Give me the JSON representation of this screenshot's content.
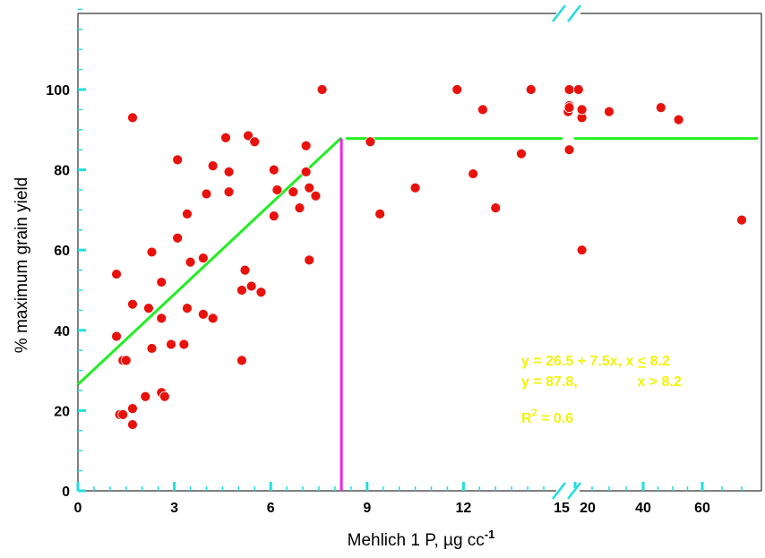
{
  "chart_data": {
    "type": "scatter",
    "xlabel": "Mehlich 1 P, µg cc",
    "xlabel_sup": "-1",
    "ylabel": "% maximum grain yield",
    "ylim": [
      0,
      120
    ],
    "y_ticks": [
      "0",
      "20",
      "40",
      "60",
      "80",
      "100"
    ],
    "x_ticks_left": [
      "0",
      "3",
      "6",
      "9",
      "12",
      "15"
    ],
    "x_ticks_right": [
      "20",
      "40",
      "60"
    ],
    "x_segments": [
      {
        "from": 0,
        "to": 15,
        "scale": "linear"
      },
      {
        "from": 15,
        "to": 70,
        "scale": "linear",
        "break_before": true
      }
    ],
    "grid": false,
    "series": [
      {
        "marker": "circle",
        "color": "#e8120c",
        "points": [
          [
            1.2,
            54
          ],
          [
            1.2,
            38.5
          ],
          [
            1.3,
            19
          ],
          [
            1.4,
            32.5
          ],
          [
            1.4,
            19
          ],
          [
            1.5,
            32.5
          ],
          [
            1.7,
            93
          ],
          [
            1.7,
            46.5
          ],
          [
            1.7,
            20.5
          ],
          [
            1.7,
            16.5
          ],
          [
            2.1,
            23.5
          ],
          [
            2.2,
            45.5
          ],
          [
            2.3,
            35.5
          ],
          [
            2.3,
            59.5
          ],
          [
            2.6,
            52
          ],
          [
            2.6,
            43
          ],
          [
            2.6,
            24.5
          ],
          [
            2.7,
            23.5
          ],
          [
            2.9,
            36.5
          ],
          [
            3.1,
            63
          ],
          [
            3.1,
            82.5
          ],
          [
            3.3,
            36.5
          ],
          [
            3.4,
            45.5
          ],
          [
            3.4,
            69
          ],
          [
            3.5,
            57
          ],
          [
            3.9,
            58
          ],
          [
            3.9,
            44
          ],
          [
            4.0,
            74
          ],
          [
            4.2,
            81
          ],
          [
            4.2,
            43
          ],
          [
            4.6,
            88
          ],
          [
            4.7,
            74.5
          ],
          [
            4.7,
            79.5
          ],
          [
            5.1,
            32.5
          ],
          [
            5.1,
            50
          ],
          [
            5.2,
            55
          ],
          [
            5.3,
            88.5
          ],
          [
            5.4,
            51
          ],
          [
            5.5,
            87
          ],
          [
            5.7,
            49.5
          ],
          [
            6.1,
            80
          ],
          [
            6.1,
            68.5
          ],
          [
            6.2,
            75
          ],
          [
            6.7,
            74.5
          ],
          [
            6.9,
            70.5
          ],
          [
            7.1,
            86
          ],
          [
            7.1,
            79.5
          ],
          [
            7.2,
            75.5
          ],
          [
            7.2,
            57.5
          ],
          [
            7.4,
            73.5
          ],
          [
            7.6,
            100
          ],
          [
            9.1,
            87
          ],
          [
            9.4,
            69
          ],
          [
            10.5,
            75.5
          ],
          [
            11.8,
            100
          ],
          [
            12.3,
            79
          ],
          [
            12.6,
            95
          ],
          [
            13.0,
            70.5
          ],
          [
            13.8,
            84
          ],
          [
            14.1,
            100
          ],
          [
            17,
            94.5
          ],
          [
            17.5,
            96
          ],
          [
            17.5,
            95.5
          ],
          [
            17.5,
            100
          ],
          [
            17.5,
            85
          ],
          [
            21,
            100
          ],
          [
            22,
            93
          ],
          [
            22,
            95
          ],
          [
            22,
            60
          ],
          [
            30,
            94.5
          ],
          [
            46,
            95.5
          ],
          [
            52,
            92.5
          ],
          [
            70,
            67.5
          ]
        ]
      }
    ],
    "fit": {
      "color": "#22ee22",
      "linear_part": {
        "x0": 0,
        "y0": 26.5,
        "slope": 7.5,
        "x_end": 8.2
      },
      "plateau": 87.8,
      "plateau_extends_to": 70
    },
    "critical_line": {
      "x": 8.2,
      "color": "#ee22ee"
    },
    "annotations": {
      "color": "#f2f20a",
      "eq1_a": "y = 26.5  + 7.5x,  x ",
      "eq1_le": "<",
      "eq1_b": " 8.2",
      "eq2": "y = 87.8,               x > 8.2",
      "r2_prefix": "R",
      "r2_sup": "2",
      "r2_suffix": " = 0.6"
    },
    "axis_tick_color": "#22dddd"
  }
}
